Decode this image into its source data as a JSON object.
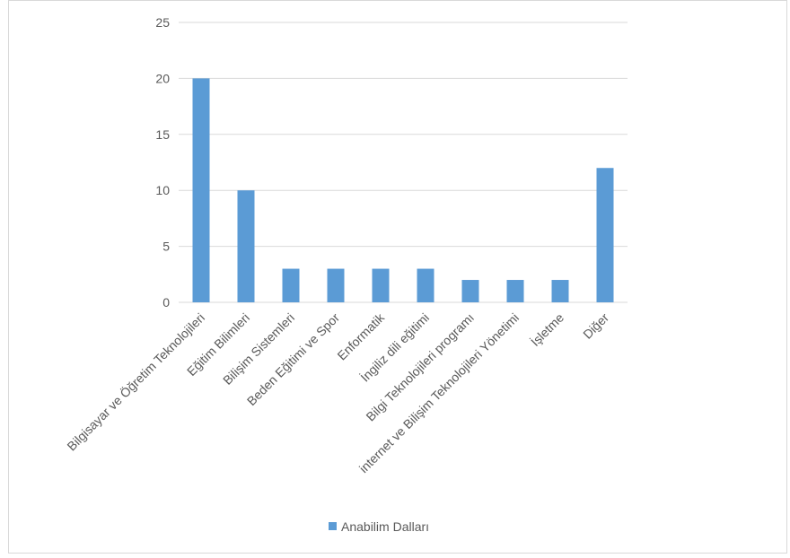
{
  "chart_data": {
    "type": "bar",
    "categories": [
      "Bilgisayar ve Öğretim Teknolojileri",
      "Eğitim Bilimleri",
      "Bilişim Sistemleri",
      "Beden Eğitimi ve Spor",
      "Enformatik",
      "İngiliz dili eğitimi",
      "Bilgi Teknolojileri programı",
      "internet ve Bilişim Teknolojileri Yönetimi",
      "İşletme",
      "Diğer"
    ],
    "series": [
      {
        "name": "Anabilim Dalları",
        "values": [
          20,
          10,
          3,
          3,
          3,
          3,
          2,
          2,
          2,
          12
        ],
        "color": "#5b9bd5"
      }
    ],
    "ylim": [
      0,
      25
    ],
    "yticks": [
      0,
      5,
      10,
      15,
      20,
      25
    ],
    "grid": true,
    "legend_position": "bottom",
    "xlabel": "",
    "ylabel": "",
    "title": ""
  }
}
